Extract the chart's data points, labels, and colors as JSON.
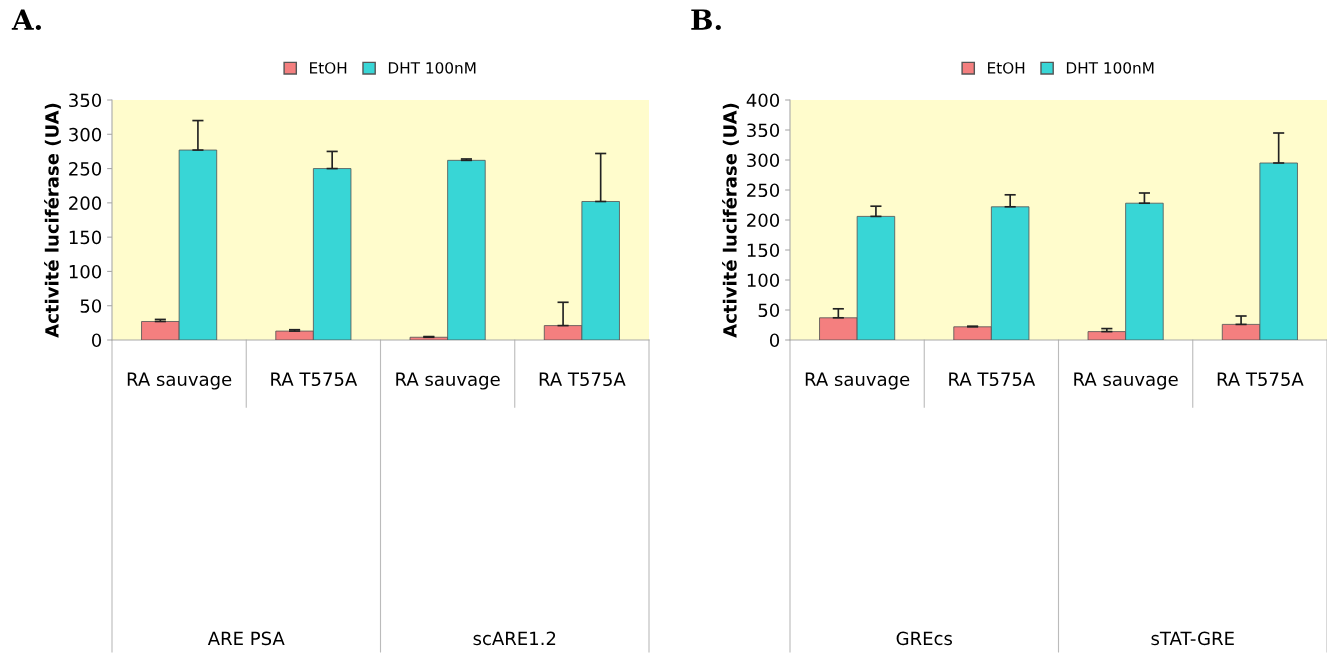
{
  "chart_data": [
    {
      "type": "bar",
      "title": "A.",
      "ylabel": "Activité luciférase (UA)",
      "categories": [
        "RA sauvage",
        "RA T575A",
        "RA sauvage",
        "RA T575A"
      ],
      "annotations": [
        "ARE PSA",
        "scARE1.2"
      ],
      "ylim": [
        0,
        350
      ],
      "yticks": [
        0,
        50,
        100,
        150,
        200,
        250,
        300,
        350
      ],
      "legend": "top",
      "grid": false,
      "series": [
        {
          "name": "EtOH",
          "color": "#f47f7f",
          "values": [
            27,
            13,
            4,
            21
          ],
          "errors": [
            [
              27,
              30
            ],
            [
              13,
              15
            ],
            [
              4,
              5
            ],
            [
              21,
              55
            ]
          ]
        },
        {
          "name": "DHT 100nM",
          "color": "#38d6d6",
          "values": [
            277,
            250,
            262,
            202
          ],
          "errors": [
            [
              277,
              320
            ],
            [
              250,
              275
            ],
            [
              262,
              264
            ],
            [
              202,
              272
            ]
          ]
        }
      ]
    },
    {
      "type": "bar",
      "title": "B.",
      "ylabel": "Activité luciférase (UA)",
      "categories": [
        "RA sauvage",
        "RA T575A",
        "RA sauvage",
        "RA T575A"
      ],
      "annotations": [
        "GREcs",
        "sTAT-GRE"
      ],
      "ylim": [
        0,
        400
      ],
      "yticks": [
        0,
        50,
        100,
        150,
        200,
        250,
        300,
        350,
        400
      ],
      "legend": "top",
      "grid": false,
      "series": [
        {
          "name": "EtOH",
          "color": "#f47f7f",
          "values": [
            37,
            22,
            14,
            26
          ],
          "errors": [
            [
              37,
              52
            ],
            [
              22,
              23
            ],
            [
              14,
              19
            ],
            [
              26,
              40
            ]
          ]
        },
        {
          "name": "DHT 100nM",
          "color": "#38d6d6",
          "values": [
            206,
            222,
            228,
            295
          ],
          "errors": [
            [
              206,
              223
            ],
            [
              222,
              242
            ],
            [
              228,
              245
            ],
            [
              295,
              345
            ]
          ]
        }
      ]
    }
  ]
}
